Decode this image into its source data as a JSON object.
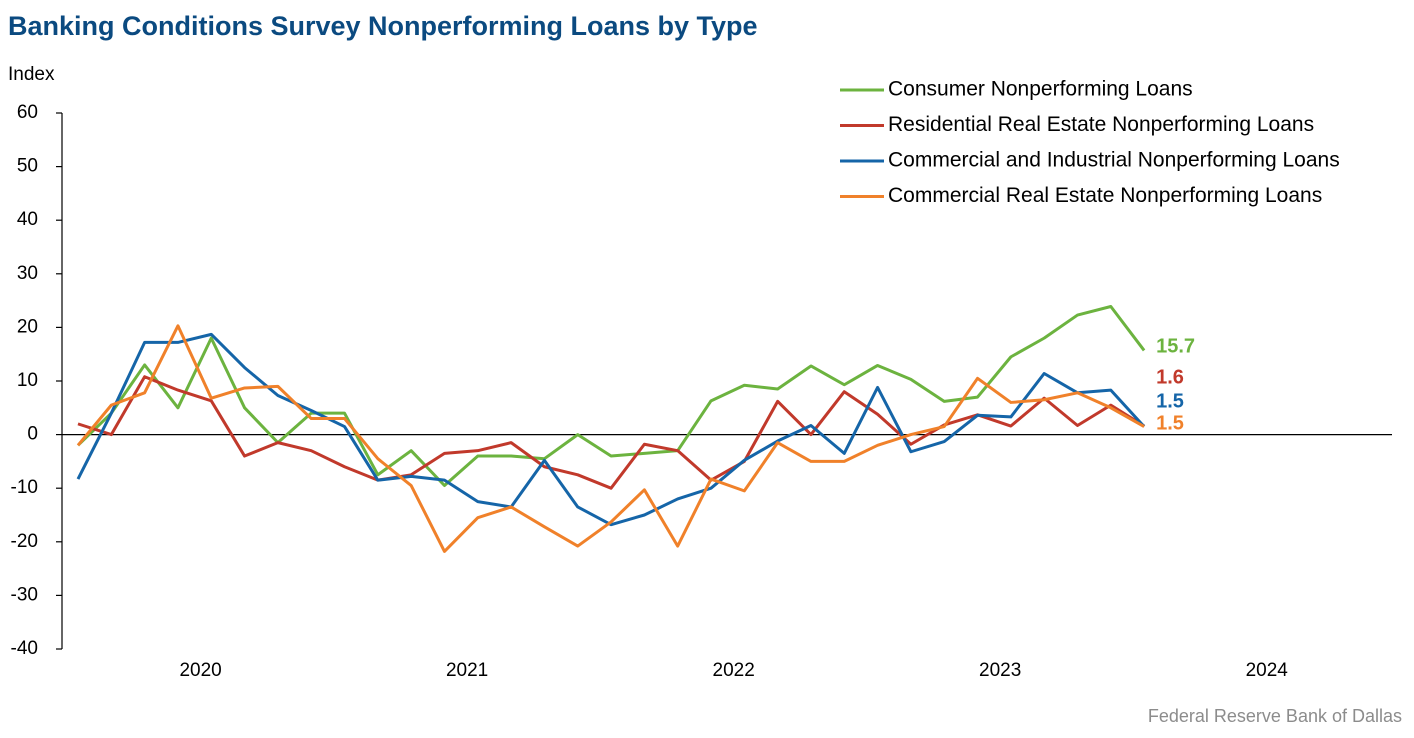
{
  "chart_data": {
    "type": "line",
    "title": "Banking Conditions Survey Nonperforming Loans by Type",
    "y_label": "Index",
    "source": "Federal Reserve Bank of Dallas",
    "x": [
      2020.04,
      2020.165,
      2020.29,
      2020.415,
      2020.54,
      2020.665,
      2020.79,
      2020.915,
      2021.04,
      2021.165,
      2021.29,
      2021.415,
      2021.54,
      2021.665,
      2021.79,
      2021.915,
      2022.04,
      2022.165,
      2022.29,
      2022.415,
      2022.54,
      2022.665,
      2022.79,
      2022.915,
      2023.04,
      2023.165,
      2023.29,
      2023.415,
      2023.54,
      2023.665,
      2023.79,
      2023.915,
      2024.04
    ],
    "series": [
      {
        "name": "Consumer Nonperforming Loans",
        "color": "#6cb33f",
        "values": [
          -2,
          4,
          13,
          5,
          18,
          5,
          -1.5,
          4,
          4,
          -7.5,
          -3,
          -9.5,
          -4,
          -4,
          -4.5,
          0,
          -4,
          -3.5,
          -3,
          6.3,
          9.2,
          8.5,
          12.8,
          9.3,
          12.9,
          10.3,
          6.2,
          7,
          14.5,
          18,
          22.3,
          23.9,
          15.7
        ]
      },
      {
        "name": "Residential Real Estate Nonperforming Loans",
        "color": "#c1392b",
        "values": [
          2,
          0,
          10.8,
          8.3,
          6.3,
          -4,
          -1.5,
          -3,
          -6,
          -8.5,
          -7.5,
          -3.5,
          -3,
          -1.5,
          -6,
          -7.5,
          -10,
          -1.8,
          -3,
          -8.5,
          -5,
          6.2,
          0,
          8,
          3.8,
          -1.8,
          1.8,
          3.7,
          1.6,
          6.8,
          1.7,
          5.5,
          1.6
        ]
      },
      {
        "name": "Commercial and Industrial Nonperforming Loans",
        "color": "#1565a8",
        "values": [
          -8.3,
          4,
          17.2,
          17.2,
          18.7,
          12.5,
          7.3,
          4.5,
          1.5,
          -8.5,
          -7.8,
          -8.5,
          -12.5,
          -13.5,
          -4.8,
          -13.5,
          -16.8,
          -15,
          -12,
          -10,
          -4.8,
          -1.2,
          1.7,
          -3.5,
          8.8,
          -3.2,
          -1.3,
          3.6,
          3.3,
          11.4,
          7.8,
          8.3,
          1.5
        ]
      },
      {
        "name": "Commercial Real Estate Nonperforming Loans",
        "color": "#f0812a",
        "values": [
          -2,
          5.5,
          7.8,
          20.3,
          6.8,
          8.7,
          9,
          3,
          3,
          -4.5,
          -9.5,
          -21.8,
          -15.5,
          -13.5,
          -17.2,
          -20.8,
          -16.3,
          -10.3,
          -20.8,
          -8.3,
          -10.5,
          -1.5,
          -5,
          -5,
          -2,
          0,
          1.5,
          10.5,
          6,
          6.5,
          7.8,
          5,
          1.5
        ]
      }
    ],
    "xlim": [
      2019.98,
      2024.97
    ],
    "xticks": [
      {
        "value": 2020.5,
        "label": "2020"
      },
      {
        "value": 2021.5,
        "label": "2021"
      },
      {
        "value": 2022.5,
        "label": "2022"
      },
      {
        "value": 2023.5,
        "label": "2023"
      },
      {
        "value": 2024.5,
        "label": "2024"
      }
    ],
    "ylim": [
      -40,
      60
    ],
    "yticks": [
      -40,
      -30,
      -20,
      -10,
      0,
      10,
      20,
      30,
      40,
      50,
      60
    ],
    "grid": false,
    "legend": "top-right"
  }
}
